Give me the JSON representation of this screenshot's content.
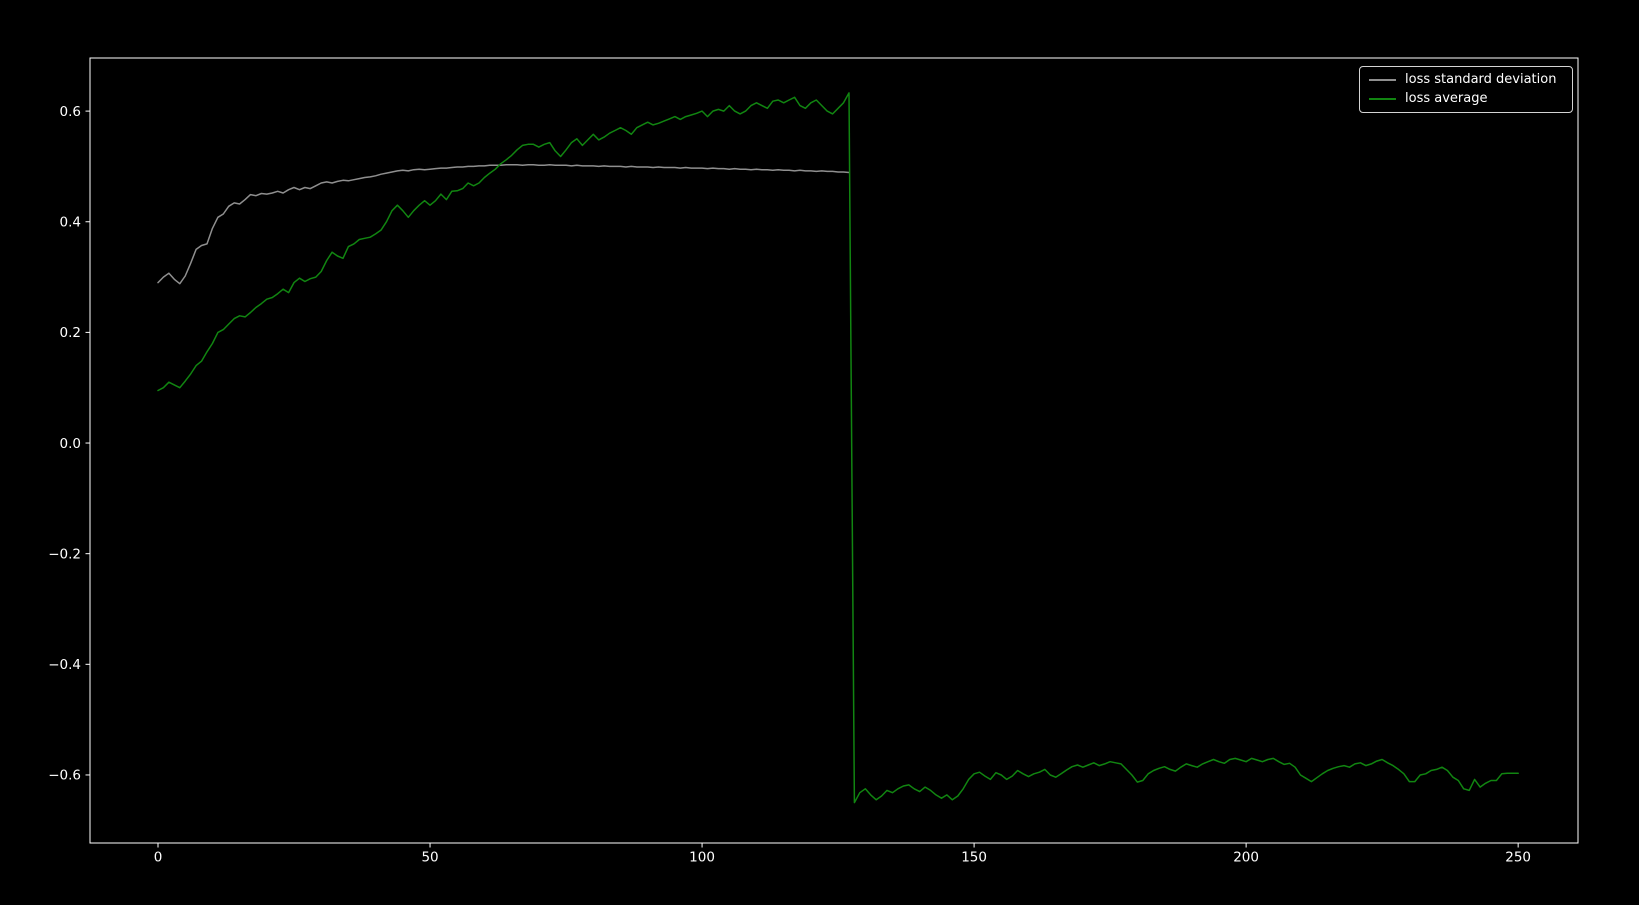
{
  "figure": {
    "background_color": "#000000",
    "axes_color": "#ffffff",
    "tick_label_color": "#ffffff"
  },
  "legend": {
    "position": "upper right",
    "border_color": "#d4d4d4",
    "items": [
      {
        "label": "loss standard deviation",
        "color": "#8f8f8f"
      },
      {
        "label": "loss average",
        "color": "#118511"
      }
    ]
  },
  "chart_data": {
    "type": "line",
    "title": "",
    "xlabel": "",
    "ylabel": "",
    "grid": false,
    "legend_position": "upper right",
    "xlim": [
      -12.5,
      261
    ],
    "ylim": [
      -0.723,
      0.696
    ],
    "x_ticks": [
      0,
      50,
      100,
      150,
      200,
      250
    ],
    "x_tick_labels": [
      "0",
      "50",
      "100",
      "150",
      "200",
      "250"
    ],
    "y_ticks": [
      0.6,
      0.4,
      0.2,
      0.0,
      -0.2,
      -0.4,
      -0.6
    ],
    "y_tick_labels": [
      "0.6",
      "0.4",
      "0.2",
      "0.0",
      "−0.2",
      "−0.4",
      "−0.6"
    ],
    "series": [
      {
        "name": "loss standard deviation",
        "color": "#8f8f8f",
        "line_width": 1.5,
        "x_start": 0,
        "x_step": 1,
        "values": [
          0.29,
          0.3,
          0.307,
          0.296,
          0.288,
          0.302,
          0.325,
          0.35,
          0.357,
          0.36,
          0.388,
          0.408,
          0.414,
          0.428,
          0.434,
          0.432,
          0.44,
          0.449,
          0.447,
          0.451,
          0.45,
          0.452,
          0.455,
          0.452,
          0.458,
          0.462,
          0.458,
          0.462,
          0.46,
          0.465,
          0.47,
          0.472,
          0.47,
          0.473,
          0.475,
          0.474,
          0.476,
          0.478,
          0.48,
          0.481,
          0.483,
          0.486,
          0.488,
          0.49,
          0.492,
          0.493,
          0.492,
          0.494,
          0.495,
          0.494,
          0.495,
          0.496,
          0.497,
          0.497,
          0.498,
          0.499,
          0.499,
          0.5,
          0.5,
          0.501,
          0.501,
          0.502,
          0.502,
          0.502,
          0.503,
          0.503,
          0.503,
          0.502,
          0.503,
          0.503,
          0.502,
          0.502,
          0.503,
          0.502,
          0.502,
          0.502,
          0.501,
          0.502,
          0.501,
          0.501,
          0.501,
          0.5,
          0.501,
          0.5,
          0.5,
          0.5,
          0.499,
          0.5,
          0.499,
          0.499,
          0.499,
          0.498,
          0.499,
          0.498,
          0.498,
          0.498,
          0.497,
          0.498,
          0.497,
          0.497,
          0.497,
          0.496,
          0.497,
          0.496,
          0.496,
          0.495,
          0.496,
          0.495,
          0.495,
          0.494,
          0.495,
          0.494,
          0.494,
          0.493,
          0.494,
          0.493,
          0.493,
          0.492,
          0.493,
          0.492,
          0.492,
          0.491,
          0.492,
          0.491,
          0.491,
          0.49,
          0.49,
          0.489
        ]
      },
      {
        "name": "loss average",
        "color": "#118511",
        "line_width": 1.5,
        "x_start": 0,
        "x_step": 1,
        "values": [
          0.095,
          0.1,
          0.11,
          0.105,
          0.1,
          0.112,
          0.125,
          0.14,
          0.148,
          0.165,
          0.18,
          0.2,
          0.205,
          0.215,
          0.225,
          0.23,
          0.228,
          0.236,
          0.245,
          0.252,
          0.26,
          0.263,
          0.27,
          0.278,
          0.272,
          0.29,
          0.298,
          0.292,
          0.297,
          0.3,
          0.31,
          0.33,
          0.345,
          0.338,
          0.334,
          0.355,
          0.36,
          0.368,
          0.37,
          0.372,
          0.378,
          0.385,
          0.4,
          0.42,
          0.43,
          0.42,
          0.408,
          0.42,
          0.43,
          0.438,
          0.43,
          0.438,
          0.45,
          0.44,
          0.455,
          0.456,
          0.46,
          0.47,
          0.465,
          0.47,
          0.48,
          0.488,
          0.495,
          0.505,
          0.512,
          0.52,
          0.53,
          0.538,
          0.54,
          0.54,
          0.535,
          0.54,
          0.543,
          0.528,
          0.518,
          0.53,
          0.543,
          0.55,
          0.538,
          0.548,
          0.558,
          0.548,
          0.553,
          0.56,
          0.565,
          0.57,
          0.565,
          0.558,
          0.57,
          0.575,
          0.58,
          0.575,
          0.578,
          0.582,
          0.586,
          0.59,
          0.585,
          0.59,
          0.593,
          0.596,
          0.6,
          0.59,
          0.6,
          0.603,
          0.6,
          0.61,
          0.6,
          0.595,
          0.6,
          0.61,
          0.615,
          0.61,
          0.605,
          0.618,
          0.62,
          0.615,
          0.62,
          0.625,
          0.61,
          0.605,
          0.615,
          0.62,
          0.61,
          0.6,
          0.595,
          0.605,
          0.615,
          0.633,
          -0.65,
          -0.632,
          -0.625,
          -0.636,
          -0.645,
          -0.638,
          -0.628,
          -0.632,
          -0.625,
          -0.62,
          -0.618,
          -0.625,
          -0.63,
          -0.622,
          -0.628,
          -0.636,
          -0.642,
          -0.636,
          -0.645,
          -0.638,
          -0.625,
          -0.608,
          -0.598,
          -0.595,
          -0.602,
          -0.608,
          -0.596,
          -0.6,
          -0.608,
          -0.602,
          -0.592,
          -0.598,
          -0.603,
          -0.598,
          -0.595,
          -0.59,
          -0.6,
          -0.604,
          -0.598,
          -0.591,
          -0.585,
          -0.582,
          -0.586,
          -0.582,
          -0.578,
          -0.583,
          -0.58,
          -0.576,
          -0.578,
          -0.58,
          -0.59,
          -0.6,
          -0.613,
          -0.61,
          -0.598,
          -0.592,
          -0.588,
          -0.585,
          -0.59,
          -0.593,
          -0.586,
          -0.58,
          -0.583,
          -0.586,
          -0.58,
          -0.576,
          -0.572,
          -0.576,
          -0.579,
          -0.572,
          -0.57,
          -0.573,
          -0.576,
          -0.57,
          -0.573,
          -0.576,
          -0.572,
          -0.57,
          -0.576,
          -0.581,
          -0.579,
          -0.586,
          -0.6,
          -0.606,
          -0.612,
          -0.605,
          -0.598,
          -0.592,
          -0.588,
          -0.585,
          -0.583,
          -0.586,
          -0.58,
          -0.578,
          -0.583,
          -0.58,
          -0.575,
          -0.572,
          -0.578,
          -0.583,
          -0.59,
          -0.598,
          -0.612,
          -0.612,
          -0.6,
          -0.598,
          -0.592,
          -0.59,
          -0.586,
          -0.592,
          -0.604,
          -0.61,
          -0.625,
          -0.628,
          -0.608,
          -0.622,
          -0.615,
          -0.61,
          -0.61,
          -0.598,
          -0.597,
          -0.597,
          -0.597
        ]
      }
    ]
  }
}
